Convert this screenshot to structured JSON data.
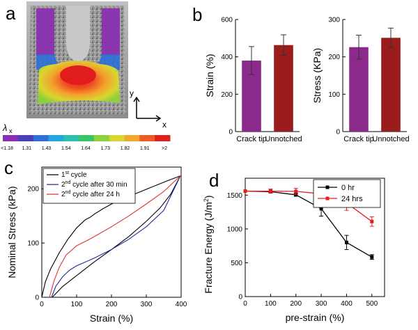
{
  "panels": {
    "a": {
      "letter": "a",
      "axis_y": "y",
      "axis_x": "x",
      "colorbar_symbol": "λ",
      "colorbar_sub": "x",
      "colorbar_ticks": [
        "<1.18",
        "1.31",
        "1.43",
        "1.54",
        "1.64",
        "1.73",
        "1.82",
        "1.91",
        ">2"
      ],
      "colorbar_colors": [
        "#8a2fb0",
        "#4a3fb8",
        "#2e6fd8",
        "#23a6e0",
        "#2bc0b0",
        "#3ac46a",
        "#8cd23a",
        "#d8d62a",
        "#f2a92a",
        "#f05a24",
        "#e0201e"
      ]
    },
    "b": {
      "letter": "b"
    },
    "c": {
      "letter": "c"
    },
    "d": {
      "letter": "d"
    }
  },
  "chart_data": [
    {
      "id": "b-strain",
      "type": "bar",
      "categories": [
        "Crack tip",
        "Unnotched"
      ],
      "values": [
        380,
        463
      ],
      "errors": [
        75,
        55
      ],
      "colors": [
        "#8b2a8b",
        "#9b1c1c"
      ],
      "ylabel": "Strain (%)",
      "ylim": [
        0,
        600
      ],
      "yticks": [
        0,
        200,
        400,
        600
      ]
    },
    {
      "id": "b-stress",
      "type": "bar",
      "categories": [
        "Crack tip",
        "Unnotched"
      ],
      "values": [
        226,
        251
      ],
      "errors": [
        32,
        26
      ],
      "colors": [
        "#8b2a8b",
        "#9b1c1c"
      ],
      "ylabel": "Stress (KPa)",
      "ylim": [
        0,
        300
      ],
      "yticks": [
        0,
        100,
        200,
        300
      ]
    },
    {
      "id": "c",
      "type": "line",
      "xlabel": "Strain (%)",
      "ylabel": "Nominal Stress (kPa)",
      "xlim": [
        0,
        400
      ],
      "ylim": [
        0,
        240
      ],
      "xticks": [
        0,
        100,
        200,
        300,
        400
      ],
      "yticks": [
        0,
        100,
        200
      ],
      "legend_placement": "top-left",
      "series": [
        {
          "name_parts": [
            "1",
            "st",
            " cycle"
          ],
          "color": "#000000",
          "loading": [
            [
              0,
              0
            ],
            [
              10,
              28
            ],
            [
              25,
              52
            ],
            [
              50,
              82
            ],
            [
              75,
              107
            ],
            [
              100,
              128
            ],
            [
              125,
              143
            ],
            [
              140,
              148
            ],
            [
              150,
              153
            ],
            [
              175,
              163
            ],
            [
              200,
              172
            ],
            [
              250,
              186
            ],
            [
              300,
              199
            ],
            [
              350,
              212
            ],
            [
              398,
              224
            ]
          ],
          "unloading": [
            [
              398,
              224
            ],
            [
              370,
              190
            ],
            [
              340,
              165
            ],
            [
              300,
              140
            ],
            [
              250,
              112
            ],
            [
              200,
              88
            ],
            [
              150,
              65
            ],
            [
              100,
              40
            ],
            [
              60,
              20
            ],
            [
              30,
              0
            ]
          ]
        },
        {
          "name_parts": [
            "2",
            "nd",
            " cycle after 30 min"
          ],
          "color": "#1f2d9e",
          "loading": [
            [
              28,
              0
            ],
            [
              40,
              20
            ],
            [
              60,
              38
            ],
            [
              80,
              50
            ],
            [
              100,
              58
            ],
            [
              150,
              72
            ],
            [
              200,
              88
            ],
            [
              250,
              107
            ],
            [
              300,
              130
            ],
            [
              350,
              160
            ],
            [
              398,
              224
            ]
          ],
          "unloading": []
        },
        {
          "name_parts": [
            "2",
            "nd",
            " cycle after 24 h"
          ],
          "color": "#e03030",
          "loading": [
            [
              22,
              0
            ],
            [
              35,
              30
            ],
            [
              50,
              55
            ],
            [
              70,
              78
            ],
            [
              100,
              95
            ],
            [
              140,
              108
            ],
            [
              200,
              130
            ],
            [
              250,
              150
            ],
            [
              300,
              172
            ],
            [
              350,
              195
            ],
            [
              398,
              224
            ]
          ],
          "unloading": []
        }
      ]
    },
    {
      "id": "d",
      "type": "line",
      "xlabel": "pre-strain (%)",
      "ylabel_main": "Fracture Energy (J/m",
      "ylabel_sup": "2",
      "ylabel_end": ")",
      "xlim": [
        0,
        550
      ],
      "ylim": [
        0,
        1750
      ],
      "xticks": [
        0,
        100,
        200,
        300,
        400,
        500
      ],
      "yticks": [
        0,
        500,
        1000,
        1500
      ],
      "legend_placement": "top-right",
      "series": [
        {
          "name": "0 hr",
          "color": "#000000",
          "marker": "square",
          "x": [
            0,
            100,
            200,
            300,
            400,
            500
          ],
          "y": [
            1560,
            1550,
            1505,
            1300,
            800,
            585
          ],
          "err": [
            0,
            15,
            20,
            110,
            105,
            35
          ]
        },
        {
          "name": "24 hrs",
          "color": "#e02020",
          "marker": "square",
          "x": [
            0,
            100,
            200,
            300,
            400,
            500
          ],
          "y": [
            1560,
            1560,
            1555,
            1520,
            1385,
            1110
          ],
          "err": [
            0,
            30,
            45,
            195,
            110,
            70
          ]
        }
      ]
    }
  ]
}
